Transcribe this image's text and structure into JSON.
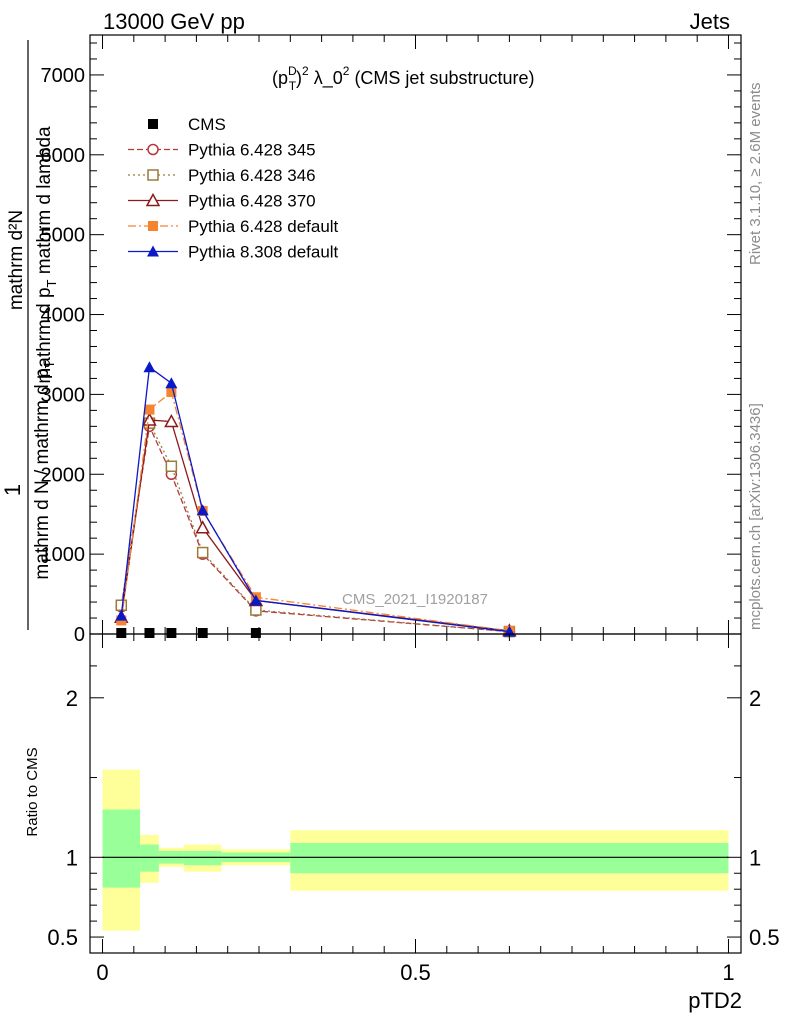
{
  "header": {
    "left": "13000 GeV pp",
    "right": "Jets"
  },
  "plot": {
    "title_p": "(p",
    "title_sup_D": "D",
    "title_sub_T": "T",
    "title_close": ")",
    "title_sup_2": "2",
    "title_lambda": " λ_0",
    "title_sup_2b": "2",
    "title_rest": " (CMS jet substructure)",
    "watermark": "CMS_2021_I1920187",
    "ylabel_numerator": "mathrm d²N",
    "ylabel_numerator_line2": "mathrm d p",
    "ylabel_numerator_sub": "T",
    "ylabel_numerator_rest": " mathrm d lambda",
    "ylabel_one": "1",
    "ylabel_denominator": "mathrm d N / mathrm d p",
    "ylabel_denominator_sub": "T",
    "ratio_ylabel": "Ratio to CMS",
    "xlabel": "pTD2"
  },
  "side": {
    "rivet": "Rivet 3.1.10, ≥ 2.6M events",
    "mcplots": "mcplots.cern.ch [arXiv:1306.3436]"
  },
  "colors": {
    "cms": "#000000",
    "p345": "#b5383f",
    "p346": "#9c7a3c",
    "p370": "#8b1a1a",
    "p6def": "#f58431",
    "p8def": "#0a18c8",
    "band_inner": "#99ff99",
    "band_outer": "#ffff99"
  },
  "chart_data": [
    {
      "type": "line",
      "xlim": [
        -0.02,
        1.02
      ],
      "ylim": [
        0,
        7500
      ],
      "yticks": [
        0,
        1000,
        2000,
        3000,
        4000,
        5000,
        6000,
        7000
      ],
      "ytick_labels": [
        "0",
        "1000",
        "2000",
        "3000",
        "4000",
        "5000",
        "6000",
        "7000"
      ],
      "legend_position": "top-left",
      "series": [
        {
          "name": "CMS",
          "key": "cms",
          "marker": "square-filled",
          "dash": "none",
          "x": [
            0.03,
            0.075,
            0.11,
            0.16,
            0.245
          ],
          "values": [
            5,
            10,
            10,
            5,
            5
          ]
        },
        {
          "name": "Pythia 6.428 345",
          "key": "p345",
          "marker": "circle-open",
          "dash": "6,3",
          "x": [
            0.03,
            0.075,
            0.11,
            0.16,
            0.245,
            0.65
          ],
          "values": [
            340,
            2600,
            2000,
            1000,
            290,
            30
          ]
        },
        {
          "name": "Pythia 6.428 346",
          "key": "p346",
          "marker": "square-open",
          "dash": "2,3",
          "x": [
            0.03,
            0.075,
            0.11,
            0.16,
            0.245,
            0.65
          ],
          "values": [
            360,
            2640,
            2100,
            1020,
            300,
            30
          ]
        },
        {
          "name": "Pythia 6.428 370",
          "key": "p370",
          "marker": "triangle-open",
          "dash": "none",
          "x": [
            0.03,
            0.075,
            0.11,
            0.16,
            0.245,
            0.65
          ],
          "values": [
            210,
            2680,
            2660,
            1330,
            420,
            40
          ]
        },
        {
          "name": "Pythia 6.428 default",
          "key": "p6def",
          "marker": "square-filled",
          "dash": "8,3,2,3",
          "x": [
            0.03,
            0.075,
            0.11,
            0.16,
            0.245,
            0.65
          ],
          "values": [
            170,
            2810,
            3030,
            1540,
            460,
            40
          ]
        },
        {
          "name": "Pythia 8.308 default",
          "key": "p8def",
          "marker": "triangle-filled",
          "dash": "none",
          "x": [
            0.03,
            0.075,
            0.11,
            0.16,
            0.245,
            0.65
          ],
          "values": [
            230,
            3340,
            3140,
            1550,
            420,
            30
          ]
        }
      ]
    },
    {
      "type": "area",
      "ylabel": "Ratio to CMS",
      "xlabel": "pTD2",
      "xlim": [
        -0.02,
        1.02
      ],
      "ylim": [
        0.4,
        2.4
      ],
      "xticks": [
        0,
        0.5,
        1
      ],
      "xtick_labels": [
        "0",
        "0.5",
        "1"
      ],
      "yticks": [
        0.5,
        1,
        2
      ],
      "ytick_labels": [
        "0.5",
        "1",
        "2"
      ],
      "bins": [
        {
          "x0": 0.0,
          "x1": 0.06,
          "inner": [
            0.81,
            1.3
          ],
          "outer": [
            0.54,
            1.55
          ]
        },
        {
          "x0": 0.06,
          "x1": 0.09,
          "inner": [
            0.91,
            1.08
          ],
          "outer": [
            0.84,
            1.14
          ]
        },
        {
          "x0": 0.09,
          "x1": 0.13,
          "inner": [
            0.96,
            1.04
          ],
          "outer": [
            0.94,
            1.06
          ]
        },
        {
          "x0": 0.13,
          "x1": 0.19,
          "inner": [
            0.95,
            1.04
          ],
          "outer": [
            0.91,
            1.08
          ]
        },
        {
          "x0": 0.19,
          "x1": 0.3,
          "inner": [
            0.97,
            1.03
          ],
          "outer": [
            0.95,
            1.05
          ]
        },
        {
          "x0": 0.3,
          "x1": 1.0,
          "inner": [
            0.9,
            1.09
          ],
          "outer": [
            0.79,
            1.17
          ]
        }
      ]
    }
  ]
}
